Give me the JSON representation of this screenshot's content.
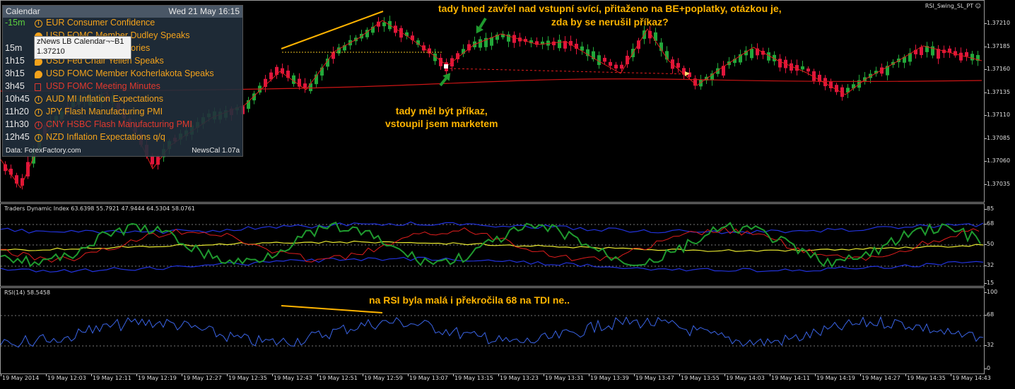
{
  "main_chart": {
    "expert_label": "RSI_Swing_SL_PT ☺",
    "price_axis": [
      "1.37210",
      "1.37185",
      "1.37160",
      "1.37135",
      "1.37110",
      "1.37085",
      "1.37060",
      "1.37035"
    ]
  },
  "calendar": {
    "title": "Calendar",
    "datetime": "Wed 21 May 16:15",
    "events": [
      {
        "time": "-15m",
        "icon": "info-icon",
        "text": "EUR Consumer Confidence",
        "color": "#f3a21b",
        "time_color": "#5cd13e"
      },
      {
        "time": "",
        "icon": "speech-icon",
        "text": "USD FOMC Member Dudley Speaks",
        "color": "#f3a21b",
        "time_color": "#e8e8e8"
      },
      {
        "time": "15m",
        "icon": "document-icon",
        "text": "USD Crude Oil Inventories",
        "color": "#f3a21b",
        "time_color": "#e8e8e8"
      },
      {
        "time": "1h15",
        "icon": "speech-icon",
        "text": "USD Fed Chair Yellen Speaks",
        "color": "#f3a21b",
        "time_color": "#e8e8e8"
      },
      {
        "time": "3h15",
        "icon": "speech-icon",
        "text": "USD FOMC Member Kocherlakota Speaks",
        "color": "#f3a21b",
        "time_color": "#e8e8e8"
      },
      {
        "time": "3h45",
        "icon": "document-icon",
        "text": "USD FOMC Meeting Minutes",
        "color": "#e2392e",
        "time_color": "#e8e8e8"
      },
      {
        "time": "10h45",
        "icon": "info-icon",
        "text": "AUD MI Inflation Expectations",
        "color": "#f3a21b",
        "time_color": "#e8e8e8"
      },
      {
        "time": "11h20",
        "icon": "info-icon",
        "text": "JPY  Flash Manufacturing PMI",
        "color": "#f3a21b",
        "time_color": "#e8e8e8"
      },
      {
        "time": "11h30",
        "icon": "info-icon",
        "text": "CNY  HSBC Flash Manufacturing PMI",
        "color": "#e2392e",
        "time_color": "#e8e8e8"
      },
      {
        "time": "12h45",
        "icon": "info-icon",
        "text": "NZD  Inflation Expectations q/q",
        "color": "#f3a21b",
        "time_color": "#e8e8e8"
      }
    ],
    "source": "Data: ForexFactory.com",
    "version": "NewsCal 1.07a"
  },
  "tooltip": {
    "line1": "zNews LB Calendar¬~B1",
    "line2": "1.37210"
  },
  "annotations": {
    "top": "tady hned zavřel nad vstupní svící, přitaženo na BE+poplatky, otázkou je,\nzda by se nerušil příkaz?",
    "middle": "tady měl být příkaz,\nvstoupil jsem marketem",
    "rsi": "na RSI byla malá i překročila 68 na TDI ne.."
  },
  "tdi": {
    "label": "Traders Dynamic Index 63.6398 55.7921 47.9444 64.5304 58.0761",
    "axis": [
      "85",
      "68",
      "50",
      "32",
      "15"
    ]
  },
  "rsi": {
    "label": "RSI(14) 58.5458",
    "axis": [
      "100",
      "68",
      "32",
      "0"
    ]
  },
  "time_axis": [
    "19 May 2014",
    "19 May 12:03",
    "19 May 12:11",
    "19 May 12:19",
    "19 May 12:27",
    "19 May 12:35",
    "19 May 12:43",
    "19 May 12:51",
    "19 May 12:59",
    "19 May 13:07",
    "19 May 13:15",
    "19 May 13:23",
    "19 May 13:31",
    "19 May 13:39",
    "19 May 13:47",
    "19 May 13:55",
    "19 May 14:03",
    "19 May 14:11",
    "19 May 14:19",
    "19 May 14:27",
    "19 May 14:35",
    "19 May 14:43"
  ],
  "colors": {
    "bull": "#22a83a",
    "bear": "#e0163c",
    "zigzag": "#e01d1d",
    "ma": "#cc1515",
    "annotation": "#ffb400",
    "arrow": "#1f9a2e",
    "tdi_band": "#2233dd",
    "tdi_mid": "#e8e830",
    "tdi_rsi": "#1f9a2e",
    "tdi_signal": "#e01d1d",
    "rsi_line": "#3a64e6"
  }
}
